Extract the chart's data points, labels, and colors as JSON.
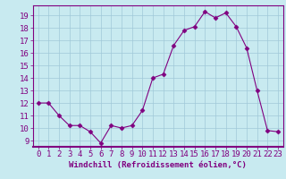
{
  "x": [
    0,
    1,
    2,
    3,
    4,
    5,
    6,
    7,
    8,
    9,
    10,
    11,
    12,
    13,
    14,
    15,
    16,
    17,
    18,
    19,
    20,
    21,
    22,
    23
  ],
  "y": [
    12,
    12,
    11,
    10.2,
    10.2,
    9.7,
    8.8,
    10.2,
    10,
    10.2,
    11.4,
    14,
    14.3,
    16.6,
    17.8,
    18.1,
    19.3,
    18.8,
    19.2,
    18.1,
    16.4,
    13.0,
    9.8,
    9.7
  ],
  "line_color": "#800080",
  "marker": "D",
  "marker_size": 2.5,
  "bg_color": "#c8eaf0",
  "grid_color": "#a0c8d8",
  "xlabel": "Windchill (Refroidissement éolien,°C)",
  "ylim": [
    8.5,
    19.8
  ],
  "xlim": [
    -0.5,
    23.5
  ],
  "yticks": [
    9,
    10,
    11,
    12,
    13,
    14,
    15,
    16,
    17,
    18,
    19
  ],
  "xticks": [
    0,
    1,
    2,
    3,
    4,
    5,
    6,
    7,
    8,
    9,
    10,
    11,
    12,
    13,
    14,
    15,
    16,
    17,
    18,
    19,
    20,
    21,
    22,
    23
  ],
  "axis_color": "#800080",
  "tick_color": "#800080",
  "font_size_xlabel": 6.5,
  "font_size_ticks": 6.5
}
